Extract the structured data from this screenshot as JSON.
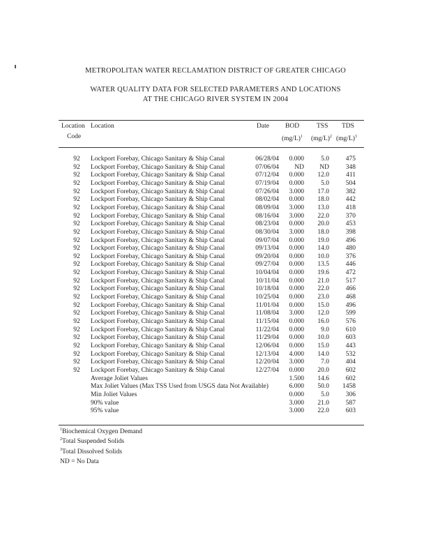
{
  "header": {
    "line1": "METROPOLITAN WATER RECLAMATION DISTRICT OF GREATER CHICAGO",
    "line2": "WATER QUALITY DATA FOR SELECTED PARAMETERS AND LOCATIONS",
    "line3": "AT THE CHICAGO RIVER SYSTEM IN 2004"
  },
  "columns": {
    "code1": "Location",
    "code2": "Code",
    "location": "Location",
    "date": "Date",
    "bod1": "BOD",
    "bod2": "(mg/L)",
    "bod_sup": "1",
    "tss1": "TSS",
    "tss2": "(mg/L)",
    "tss_sup": "2",
    "tds1": "TDS",
    "tds2": "(mg/L)",
    "tds_sup": "3"
  },
  "rows": [
    {
      "code": "92",
      "location": "Lockport Forebay, Chicago Sanitary & Ship Canal",
      "date": "06/28/04",
      "bod": "0.000",
      "tss": "5.0",
      "tds": "475"
    },
    {
      "code": "92",
      "location": "Lockport Forebay, Chicago Sanitary & Ship Canal",
      "date": "07/06/04",
      "bod": "ND",
      "tss": "ND",
      "tds": "348"
    },
    {
      "code": "92",
      "location": "Lockport Forebay, Chicago Sanitary & Ship Canal",
      "date": "07/12/04",
      "bod": "0.000",
      "tss": "12.0",
      "tds": "411"
    },
    {
      "code": "92",
      "location": "Lockport Forebay, Chicago Sanitary & Ship Canal",
      "date": "07/19/04",
      "bod": "0.000",
      "tss": "5.0",
      "tds": "504"
    },
    {
      "code": "92",
      "location": "Lockport Forebay, Chicago Sanitary & Ship Canal",
      "date": "07/26/04",
      "bod": "3.000",
      "tss": "17.0",
      "tds": "382"
    },
    {
      "code": "92",
      "location": "Lockport Forebay, Chicago Sanitary & Ship Canal",
      "date": "08/02/04",
      "bod": "0.000",
      "tss": "18.0",
      "tds": "442"
    },
    {
      "code": "92",
      "location": "Lockport Forebay, Chicago Sanitary & Ship Canal",
      "date": "08/09/04",
      "bod": "3.000",
      "tss": "13.0",
      "tds": "418"
    },
    {
      "code": "92",
      "location": "Lockport Forebay, Chicago Sanitary & Ship Canal",
      "date": "08/16/04",
      "bod": "3.000",
      "tss": "22.0",
      "tds": "370"
    },
    {
      "code": "92",
      "location": "Lockport Forebay, Chicago Sanitary & Ship Canal",
      "date": "08/23/04",
      "bod": "0.000",
      "tss": "20.0",
      "tds": "453"
    },
    {
      "code": "92",
      "location": "Lockport Forebay, Chicago Sanitary & Ship Canal",
      "date": "08/30/04",
      "bod": "3.000",
      "tss": "18.0",
      "tds": "398"
    },
    {
      "code": "92",
      "location": "Lockport Forebay, Chicago Sanitary & Ship Canal",
      "date": "09/07/04",
      "bod": "0.000",
      "tss": "19.0",
      "tds": "496"
    },
    {
      "code": "92",
      "location": "Lockport Forebay, Chicago Sanitary & Ship Canal",
      "date": "09/13/04",
      "bod": "0.000",
      "tss": "14.0",
      "tds": "480"
    },
    {
      "code": "92",
      "location": "Lockport Forebay, Chicago Sanitary & Ship Canal",
      "date": "09/20/04",
      "bod": "0.000",
      "tss": "10.0",
      "tds": "376"
    },
    {
      "code": "92",
      "location": "Lockport Forebay, Chicago Sanitary & Ship Canal",
      "date": "09/27/04",
      "bod": "0.000",
      "tss": "13.5",
      "tds": "446"
    },
    {
      "code": "92",
      "location": "Lockport Forebay, Chicago Sanitary & Ship Canal",
      "date": "10/04/04",
      "bod": "0.000",
      "tss": "19.6",
      "tds": "472"
    },
    {
      "code": "92",
      "location": "Lockport Forebay, Chicago Sanitary & Ship Canal",
      "date": "10/11/04",
      "bod": "0.000",
      "tss": "21.0",
      "tds": "517"
    },
    {
      "code": "92",
      "location": "Lockport Forebay, Chicago Sanitary & Ship Canal",
      "date": "10/18/04",
      "bod": "0.000",
      "tss": "22.0",
      "tds": "466"
    },
    {
      "code": "92",
      "location": "Lockport Forebay, Chicago Sanitary & Ship Canal",
      "date": "10/25/04",
      "bod": "0.000",
      "tss": "23.0",
      "tds": "468"
    },
    {
      "code": "92",
      "location": "Lockport Forebay, Chicago Sanitary & Ship Canal",
      "date": "11/01/04",
      "bod": "0.000",
      "tss": "15.0",
      "tds": "496"
    },
    {
      "code": "92",
      "location": "Lockport Forebay, Chicago Sanitary & Ship Canal",
      "date": "11/08/04",
      "bod": "3.000",
      "tss": "12.0",
      "tds": "599"
    },
    {
      "code": "92",
      "location": "Lockport Forebay, Chicago Sanitary & Ship Canal",
      "date": "11/15/04",
      "bod": "0.000",
      "tss": "16.0",
      "tds": "576"
    },
    {
      "code": "92",
      "location": "Lockport Forebay, Chicago Sanitary & Ship Canal",
      "date": "11/22/04",
      "bod": "0.000",
      "tss": "9.0",
      "tds": "610"
    },
    {
      "code": "92",
      "location": "Lockport Forebay, Chicago Sanitary & Ship Canal",
      "date": "11/29/04",
      "bod": "0.000",
      "tss": "10.0",
      "tds": "603"
    },
    {
      "code": "92",
      "location": "Lockport Forebay, Chicago Sanitary & Ship Canal",
      "date": "12/06/04",
      "bod": "0.000",
      "tss": "15.0",
      "tds": "443"
    },
    {
      "code": "92",
      "location": "Lockport Forebay, Chicago Sanitary & Ship Canal",
      "date": "12/13/04",
      "bod": "4.000",
      "tss": "14.0",
      "tds": "532"
    },
    {
      "code": "92",
      "location": "Lockport Forebay, Chicago Sanitary & Ship Canal",
      "date": "12/20/04",
      "bod": "3.000",
      "tss": "7.0",
      "tds": "404"
    },
    {
      "code": "92",
      "location": "Lockport Forebay, Chicago Sanitary & Ship Canal",
      "date": "12/27/04",
      "bod": "0.000",
      "tss": "20.0",
      "tds": "602"
    }
  ],
  "summary": [
    {
      "label": "Average Joliet Values",
      "bod": "1.500",
      "tss": "14.6",
      "tds": "602"
    },
    {
      "label": "Max Joliet Values (Max TSS Used from USGS data Not Available)",
      "bod": "6.000",
      "tss": "50.0",
      "tds": "1458"
    },
    {
      "label": "Min Joliet Values",
      "bod": "0.000",
      "tss": "5.0",
      "tds": "306"
    },
    {
      "label": "90% value",
      "bod": "3.000",
      "tss": "21.0",
      "tds": "587"
    },
    {
      "label": "95% value",
      "bod": "3.000",
      "tss": "22.0",
      "tds": "603"
    }
  ],
  "footnotes": [
    {
      "sup": "1",
      "text": "Biochemical Oxygen Demand"
    },
    {
      "sup": "2",
      "text": "Total Suspended Solids"
    },
    {
      "sup": "3",
      "text": "Total Dissolved Solids"
    },
    {
      "sup": "",
      "text": "ND = No Data"
    }
  ]
}
